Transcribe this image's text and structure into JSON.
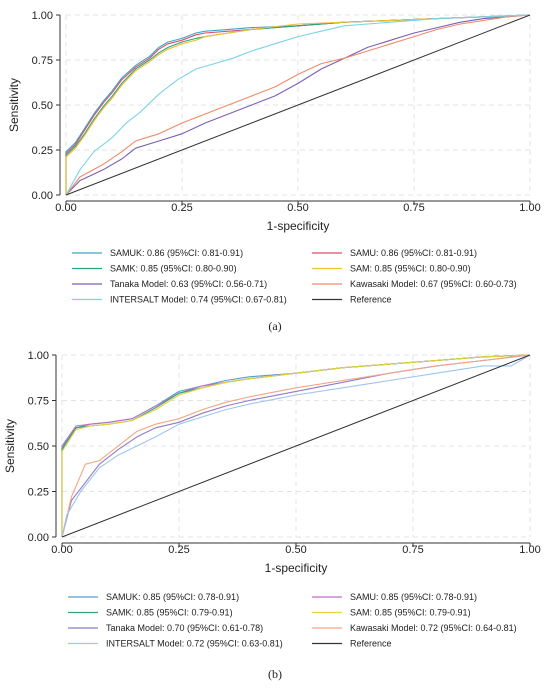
{
  "chart_data": [
    {
      "type": "line",
      "panel_label": "(a)",
      "xlabel": "1-specificity",
      "ylabel": "Sensitivity",
      "xlim": [
        0,
        1
      ],
      "ylim": [
        0,
        1
      ],
      "xticks": [
        "0.00",
        "0.25",
        "0.50",
        "0.75",
        "1.00"
      ],
      "yticks": [
        "0.00",
        "0.25",
        "0.50",
        "0.75",
        "1.00"
      ],
      "grid": true,
      "legend_position": "bottom",
      "series": [
        {
          "name": "SAMUK: 0.86 (95%CI: 0.81-0.91)",
          "color": "#3aa6c9",
          "x": [
            0,
            0,
            0.02,
            0.04,
            0.06,
            0.08,
            0.1,
            0.12,
            0.15,
            0.18,
            0.2,
            0.22,
            0.25,
            0.28,
            0.3,
            0.35,
            0.4,
            0.5,
            0.6,
            0.7,
            0.8,
            0.9,
            1.0
          ],
          "y": [
            0,
            0.24,
            0.29,
            0.37,
            0.45,
            0.52,
            0.58,
            0.65,
            0.72,
            0.77,
            0.82,
            0.85,
            0.87,
            0.9,
            0.91,
            0.92,
            0.93,
            0.94,
            0.96,
            0.97,
            0.98,
            0.99,
            1.0
          ]
        },
        {
          "name": "SAMU: 0.86 (95%CI: 0.81-0.91)",
          "color": "#d94f6e",
          "x": [
            0,
            0,
            0.02,
            0.04,
            0.06,
            0.08,
            0.1,
            0.12,
            0.15,
            0.18,
            0.2,
            0.22,
            0.25,
            0.28,
            0.3,
            0.35,
            0.4,
            0.5,
            0.6,
            0.7,
            0.8,
            0.9,
            1.0
          ],
          "y": [
            0,
            0.23,
            0.28,
            0.36,
            0.44,
            0.51,
            0.57,
            0.64,
            0.71,
            0.76,
            0.81,
            0.84,
            0.86,
            0.89,
            0.9,
            0.91,
            0.92,
            0.94,
            0.96,
            0.97,
            0.98,
            0.99,
            1.0
          ]
        },
        {
          "name": "SAMK: 0.85 (95%CI: 0.80-0.90)",
          "color": "#2ea37e",
          "x": [
            0,
            0,
            0.02,
            0.04,
            0.06,
            0.08,
            0.1,
            0.12,
            0.15,
            0.18,
            0.2,
            0.22,
            0.25,
            0.28,
            0.3,
            0.35,
            0.4,
            0.5,
            0.6,
            0.7,
            0.8,
            0.9,
            1.0
          ],
          "y": [
            0,
            0.22,
            0.27,
            0.34,
            0.42,
            0.49,
            0.55,
            0.62,
            0.7,
            0.75,
            0.79,
            0.82,
            0.85,
            0.87,
            0.88,
            0.9,
            0.92,
            0.94,
            0.96,
            0.97,
            0.98,
            0.99,
            1.0
          ]
        },
        {
          "name": "SAM: 0.85 (95%CI: 0.80-0.90)",
          "color": "#f2c12e",
          "x": [
            0,
            0,
            0.02,
            0.04,
            0.06,
            0.08,
            0.1,
            0.12,
            0.15,
            0.18,
            0.2,
            0.22,
            0.25,
            0.28,
            0.3,
            0.35,
            0.4,
            0.5,
            0.6,
            0.7,
            0.8,
            0.9,
            1.0
          ],
          "y": [
            0,
            0.21,
            0.26,
            0.33,
            0.41,
            0.48,
            0.54,
            0.61,
            0.69,
            0.74,
            0.78,
            0.81,
            0.84,
            0.86,
            0.88,
            0.9,
            0.92,
            0.95,
            0.96,
            0.97,
            0.98,
            0.99,
            1.0
          ]
        },
        {
          "name": "Tanaka Model: 0.63 (95%CI: 0.56-0.71)",
          "color": "#7b5fb5",
          "x": [
            0,
            0.03,
            0.08,
            0.12,
            0.15,
            0.2,
            0.25,
            0.3,
            0.35,
            0.4,
            0.45,
            0.5,
            0.55,
            0.6,
            0.65,
            0.7,
            0.75,
            0.8,
            0.85,
            0.9,
            0.95,
            1.0
          ],
          "y": [
            0,
            0.08,
            0.14,
            0.2,
            0.26,
            0.3,
            0.34,
            0.4,
            0.45,
            0.5,
            0.55,
            0.62,
            0.7,
            0.76,
            0.82,
            0.86,
            0.9,
            0.93,
            0.96,
            0.98,
            0.99,
            1.0
          ]
        },
        {
          "name": "Kawasaki Model: 0.67 (95%CI: 0.60-0.73)",
          "color": "#ef8a6a",
          "x": [
            0,
            0.03,
            0.08,
            0.12,
            0.15,
            0.2,
            0.25,
            0.3,
            0.35,
            0.4,
            0.45,
            0.5,
            0.55,
            0.6,
            0.65,
            0.7,
            0.75,
            0.8,
            0.85,
            0.9,
            0.95,
            1.0
          ],
          "y": [
            0,
            0.1,
            0.17,
            0.24,
            0.3,
            0.34,
            0.4,
            0.45,
            0.5,
            0.55,
            0.6,
            0.67,
            0.73,
            0.76,
            0.8,
            0.84,
            0.88,
            0.92,
            0.95,
            0.97,
            0.99,
            1.0
          ]
        },
        {
          "name": "INTERSALT Model: 0.74 (95%CI: 0.67-0.81)",
          "color": "#7dd3ea",
          "x": [
            0,
            0.03,
            0.06,
            0.1,
            0.13,
            0.16,
            0.2,
            0.24,
            0.28,
            0.32,
            0.36,
            0.4,
            0.45,
            0.5,
            0.55,
            0.6,
            0.7,
            0.8,
            0.9,
            1.0
          ],
          "y": [
            0,
            0.14,
            0.24,
            0.32,
            0.4,
            0.46,
            0.56,
            0.64,
            0.7,
            0.73,
            0.76,
            0.8,
            0.84,
            0.88,
            0.91,
            0.94,
            0.96,
            0.98,
            0.99,
            1.0
          ]
        },
        {
          "name": "Reference",
          "color": "#333333",
          "x": [
            0,
            1
          ],
          "y": [
            0,
            1
          ]
        }
      ]
    },
    {
      "type": "line",
      "panel_label": "(b)",
      "xlabel": "1-specificity",
      "ylabel": "Sensitivity",
      "xlim": [
        0,
        1
      ],
      "ylim": [
        0,
        1
      ],
      "xticks": [
        "0.00",
        "0.25",
        "0.50",
        "0.75",
        "1.00"
      ],
      "yticks": [
        "0.00",
        "0.25",
        "0.50",
        "0.75",
        "1.00"
      ],
      "grid": true,
      "legend_position": "bottom",
      "series": [
        {
          "name": "SAMUK: 0.85 (95%CI: 0.78-0.91)",
          "color": "#5b9bd5",
          "x": [
            0,
            0,
            0.03,
            0.06,
            0.1,
            0.15,
            0.2,
            0.25,
            0.3,
            0.35,
            0.4,
            0.5,
            0.6,
            0.7,
            0.8,
            0.9,
            1.0
          ],
          "y": [
            0,
            0.49,
            0.6,
            0.62,
            0.63,
            0.65,
            0.72,
            0.8,
            0.83,
            0.86,
            0.88,
            0.9,
            0.93,
            0.95,
            0.97,
            0.99,
            1.0
          ]
        },
        {
          "name": "SAMU: 0.85 (95%CI: 0.78-0.91)",
          "color": "#c06fc5",
          "x": [
            0,
            0,
            0.03,
            0.06,
            0.1,
            0.15,
            0.2,
            0.25,
            0.3,
            0.35,
            0.4,
            0.5,
            0.6,
            0.7,
            0.8,
            0.9,
            1.0
          ],
          "y": [
            0,
            0.5,
            0.61,
            0.62,
            0.63,
            0.65,
            0.72,
            0.79,
            0.83,
            0.85,
            0.87,
            0.9,
            0.93,
            0.95,
            0.97,
            0.99,
            1.0
          ]
        },
        {
          "name": "SAMK: 0.85 (95%CI: 0.79-0.91)",
          "color": "#2ea37e",
          "x": [
            0,
            0,
            0.03,
            0.06,
            0.1,
            0.15,
            0.2,
            0.25,
            0.3,
            0.35,
            0.4,
            0.5,
            0.6,
            0.7,
            0.8,
            0.9,
            1.0
          ],
          "y": [
            0,
            0.48,
            0.6,
            0.61,
            0.62,
            0.64,
            0.71,
            0.79,
            0.82,
            0.85,
            0.87,
            0.9,
            0.93,
            0.95,
            0.97,
            0.99,
            1.0
          ]
        },
        {
          "name": "SAM: 0.85 (95%CI: 0.79-0.91)",
          "color": "#e8d23a",
          "x": [
            0,
            0,
            0.03,
            0.06,
            0.1,
            0.15,
            0.2,
            0.25,
            0.3,
            0.35,
            0.4,
            0.5,
            0.6,
            0.7,
            0.8,
            0.9,
            1.0
          ],
          "y": [
            0,
            0.47,
            0.59,
            0.61,
            0.62,
            0.64,
            0.7,
            0.78,
            0.82,
            0.85,
            0.87,
            0.9,
            0.93,
            0.95,
            0.97,
            0.99,
            1.0
          ]
        },
        {
          "name": "Tanaka Model: 0.70 (95%CI: 0.61-0.78)",
          "color": "#8e7cc3",
          "x": [
            0,
            0.02,
            0.05,
            0.08,
            0.12,
            0.16,
            0.2,
            0.25,
            0.3,
            0.35,
            0.4,
            0.5,
            0.6,
            0.7,
            0.8,
            0.9,
            1.0
          ],
          "y": [
            0,
            0.2,
            0.3,
            0.4,
            0.48,
            0.55,
            0.6,
            0.63,
            0.68,
            0.72,
            0.75,
            0.8,
            0.85,
            0.9,
            0.94,
            0.97,
            1.0
          ]
        },
        {
          "name": "Kawasaki Model: 0.72 (95%CI: 0.64-0.81)",
          "color": "#f4a582",
          "x": [
            0,
            0.02,
            0.05,
            0.08,
            0.12,
            0.16,
            0.2,
            0.25,
            0.3,
            0.35,
            0.4,
            0.5,
            0.6,
            0.7,
            0.8,
            0.9,
            1.0
          ],
          "y": [
            0,
            0.22,
            0.4,
            0.42,
            0.5,
            0.58,
            0.62,
            0.65,
            0.7,
            0.74,
            0.77,
            0.82,
            0.86,
            0.9,
            0.94,
            0.97,
            1.0
          ]
        },
        {
          "name": "INTERSALT Model: 0.72 (95%CI: 0.63-0.81)",
          "color": "#9ec5f0",
          "x": [
            0,
            0.01,
            0.04,
            0.08,
            0.12,
            0.16,
            0.2,
            0.25,
            0.3,
            0.35,
            0.4,
            0.5,
            0.6,
            0.7,
            0.8,
            0.9,
            0.96,
            1.0
          ],
          "y": [
            0,
            0.12,
            0.25,
            0.38,
            0.45,
            0.5,
            0.55,
            0.62,
            0.66,
            0.7,
            0.73,
            0.78,
            0.82,
            0.86,
            0.9,
            0.94,
            0.94,
            1.0
          ]
        },
        {
          "name": "Reference",
          "color": "#333333",
          "x": [
            0,
            1
          ],
          "y": [
            0,
            1
          ]
        }
      ]
    }
  ]
}
